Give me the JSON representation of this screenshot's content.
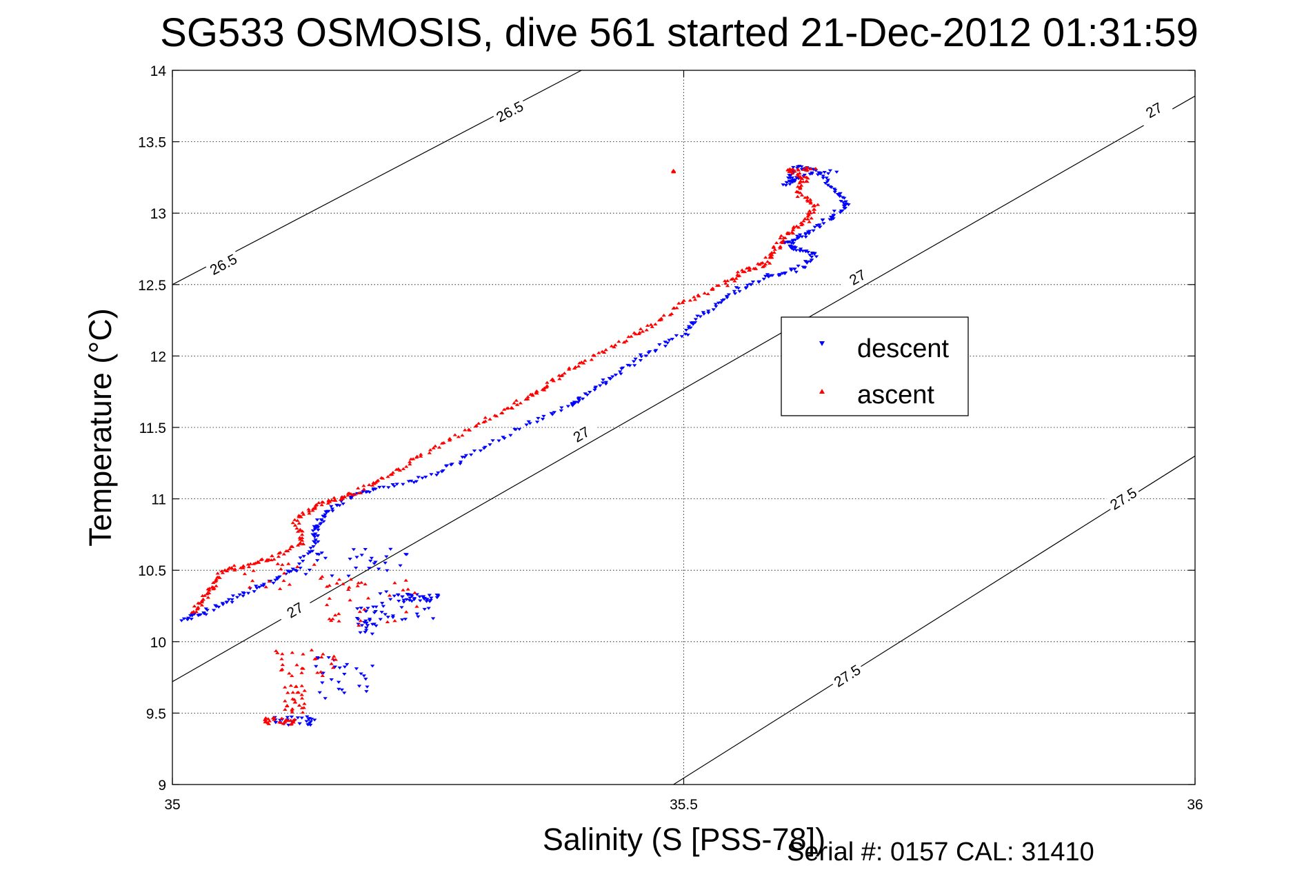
{
  "chart_data": {
    "type": "scatter",
    "title": "SG533 OSMOSIS, dive 561 started 21-Dec-2012 01:31:59",
    "xlabel": "Salinity (S [PSS-78])",
    "ylabel": "Temperature (°C)",
    "xlim": [
      35,
      36
    ],
    "ylim": [
      9,
      14
    ],
    "xticks": [
      35,
      35.5,
      36
    ],
    "xtick_labels": [
      "35",
      "35.5",
      "36"
    ],
    "yticks": [
      9,
      9.5,
      10,
      10.5,
      11,
      11.5,
      12,
      12.5,
      13,
      13.5,
      14
    ],
    "ytick_labels": [
      "9",
      "9.5",
      "10",
      "10.5",
      "11",
      "11.5",
      "12",
      "12.5",
      "13",
      "13.5",
      "14"
    ],
    "grid": true,
    "legend_position": "center-right",
    "colors": {
      "descent": "#0000ff",
      "ascent": "#ff0000",
      "contour": "#000000"
    },
    "series": [
      {
        "name": "descent",
        "marker": "triangle-down",
        "color": "#0000ff",
        "path": [
          [
            35.01,
            10.15
          ],
          [
            35.03,
            10.2
          ],
          [
            35.06,
            10.3
          ],
          [
            35.09,
            10.4
          ],
          [
            35.12,
            10.5
          ],
          [
            35.14,
            10.7
          ],
          [
            35.14,
            10.8
          ],
          [
            35.15,
            10.9
          ],
          [
            35.17,
            11.0
          ],
          [
            35.2,
            11.07
          ],
          [
            35.25,
            11.15
          ],
          [
            35.29,
            11.3
          ],
          [
            35.34,
            11.5
          ],
          [
            35.39,
            11.65
          ],
          [
            35.4,
            11.7
          ],
          [
            35.43,
            11.85
          ],
          [
            35.46,
            12.0
          ],
          [
            35.5,
            12.15
          ],
          [
            35.52,
            12.3
          ],
          [
            35.55,
            12.45
          ],
          [
            35.58,
            12.55
          ],
          [
            35.61,
            12.6
          ],
          [
            35.63,
            12.7
          ],
          [
            35.61,
            12.75
          ],
          [
            35.6,
            12.8
          ],
          [
            35.62,
            12.85
          ],
          [
            35.64,
            12.95
          ],
          [
            35.66,
            13.05
          ],
          [
            35.65,
            13.15
          ],
          [
            35.63,
            13.3
          ],
          [
            35.61,
            13.32
          ],
          [
            35.6,
            13.2
          ],
          [
            35.61,
            13.25
          ],
          [
            35.65,
            13.3
          ]
        ],
        "clusters": [
          {
            "s": [
              35.13,
              35.23
            ],
            "t": [
              10.45,
              10.65
            ]
          },
          {
            "s": [
              35.2,
              35.26
            ],
            "t": [
              10.15,
              10.35
            ]
          },
          {
            "s": [
              35.18,
              35.2
            ],
            "t": [
              10.05,
              10.25
            ]
          },
          {
            "s": [
              35.14,
              35.2
            ],
            "t": [
              9.6,
              9.9
            ]
          },
          {
            "s": [
              35.1,
              35.14
            ],
            "t": [
              9.41,
              9.48
            ]
          },
          {
            "s": [
              35.22,
              35.26
            ],
            "t": [
              10.28,
              10.33
            ]
          }
        ]
      },
      {
        "name": "ascent",
        "marker": "triangle-up",
        "color": "#ff0000",
        "path": [
          [
            35.02,
            10.2
          ],
          [
            35.03,
            10.3
          ],
          [
            35.04,
            10.38
          ],
          [
            35.05,
            10.5
          ],
          [
            35.08,
            10.55
          ],
          [
            35.1,
            10.6
          ],
          [
            35.13,
            10.7
          ],
          [
            35.12,
            10.85
          ],
          [
            35.14,
            10.95
          ],
          [
            35.16,
            11.0
          ],
          [
            35.18,
            11.05
          ],
          [
            35.21,
            11.15
          ],
          [
            35.24,
            11.3
          ],
          [
            35.28,
            11.45
          ],
          [
            35.32,
            11.6
          ],
          [
            35.35,
            11.72
          ],
          [
            35.37,
            11.82
          ],
          [
            35.4,
            11.95
          ],
          [
            35.44,
            12.1
          ],
          [
            35.47,
            12.22
          ],
          [
            35.5,
            12.38
          ],
          [
            35.54,
            12.5
          ],
          [
            35.56,
            12.6
          ],
          [
            35.58,
            12.65
          ],
          [
            35.59,
            12.75
          ],
          [
            35.6,
            12.85
          ],
          [
            35.62,
            12.95
          ],
          [
            35.63,
            13.05
          ],
          [
            35.61,
            13.15
          ],
          [
            35.62,
            13.25
          ],
          [
            35.6,
            13.3
          ],
          [
            35.63,
            13.32
          ]
        ],
        "clusters": [
          {
            "s": [
              35.06,
              35.2
            ],
            "t": [
              10.35,
              10.55
            ]
          },
          {
            "s": [
              35.15,
              35.24
            ],
            "t": [
              10.1,
              10.45
            ]
          },
          {
            "s": [
              35.1,
              35.16
            ],
            "t": [
              9.75,
              9.95
            ]
          },
          {
            "s": [
              35.11,
              35.13
            ],
            "t": [
              9.5,
              9.7
            ]
          },
          {
            "s": [
              35.09,
              35.12
            ],
            "t": [
              9.42,
              9.47
            ]
          },
          {
            "s": [
              35.49,
              35.49
            ],
            "t": [
              13.29,
              13.3
            ]
          }
        ]
      }
    ],
    "contours": [
      {
        "label": "26.5",
        "line": [
          [
            35.0,
            12.5
          ],
          [
            35.4,
            14.0
          ]
        ],
        "label_positions": [
          [
            35.05,
            12.64
          ],
          [
            35.33,
            13.71
          ]
        ]
      },
      {
        "label": "27",
        "line": [
          [
            35.0,
            9.72
          ],
          [
            36.0,
            13.82
          ]
        ],
        "label_positions": [
          [
            35.12,
            10.22
          ],
          [
            35.4,
            11.45
          ],
          [
            35.67,
            12.55
          ],
          [
            35.96,
            13.72
          ]
        ]
      },
      {
        "label": "27.5",
        "line": [
          [
            35.49,
            9.0
          ],
          [
            36.0,
            11.3
          ]
        ],
        "label_positions": [
          [
            35.66,
            9.76
          ],
          [
            35.93,
            11.0
          ]
        ]
      }
    ]
  },
  "legend": {
    "descent_label": "descent",
    "ascent_label": "ascent"
  },
  "footnote": "Serial #: 0157  CAL: 31410"
}
